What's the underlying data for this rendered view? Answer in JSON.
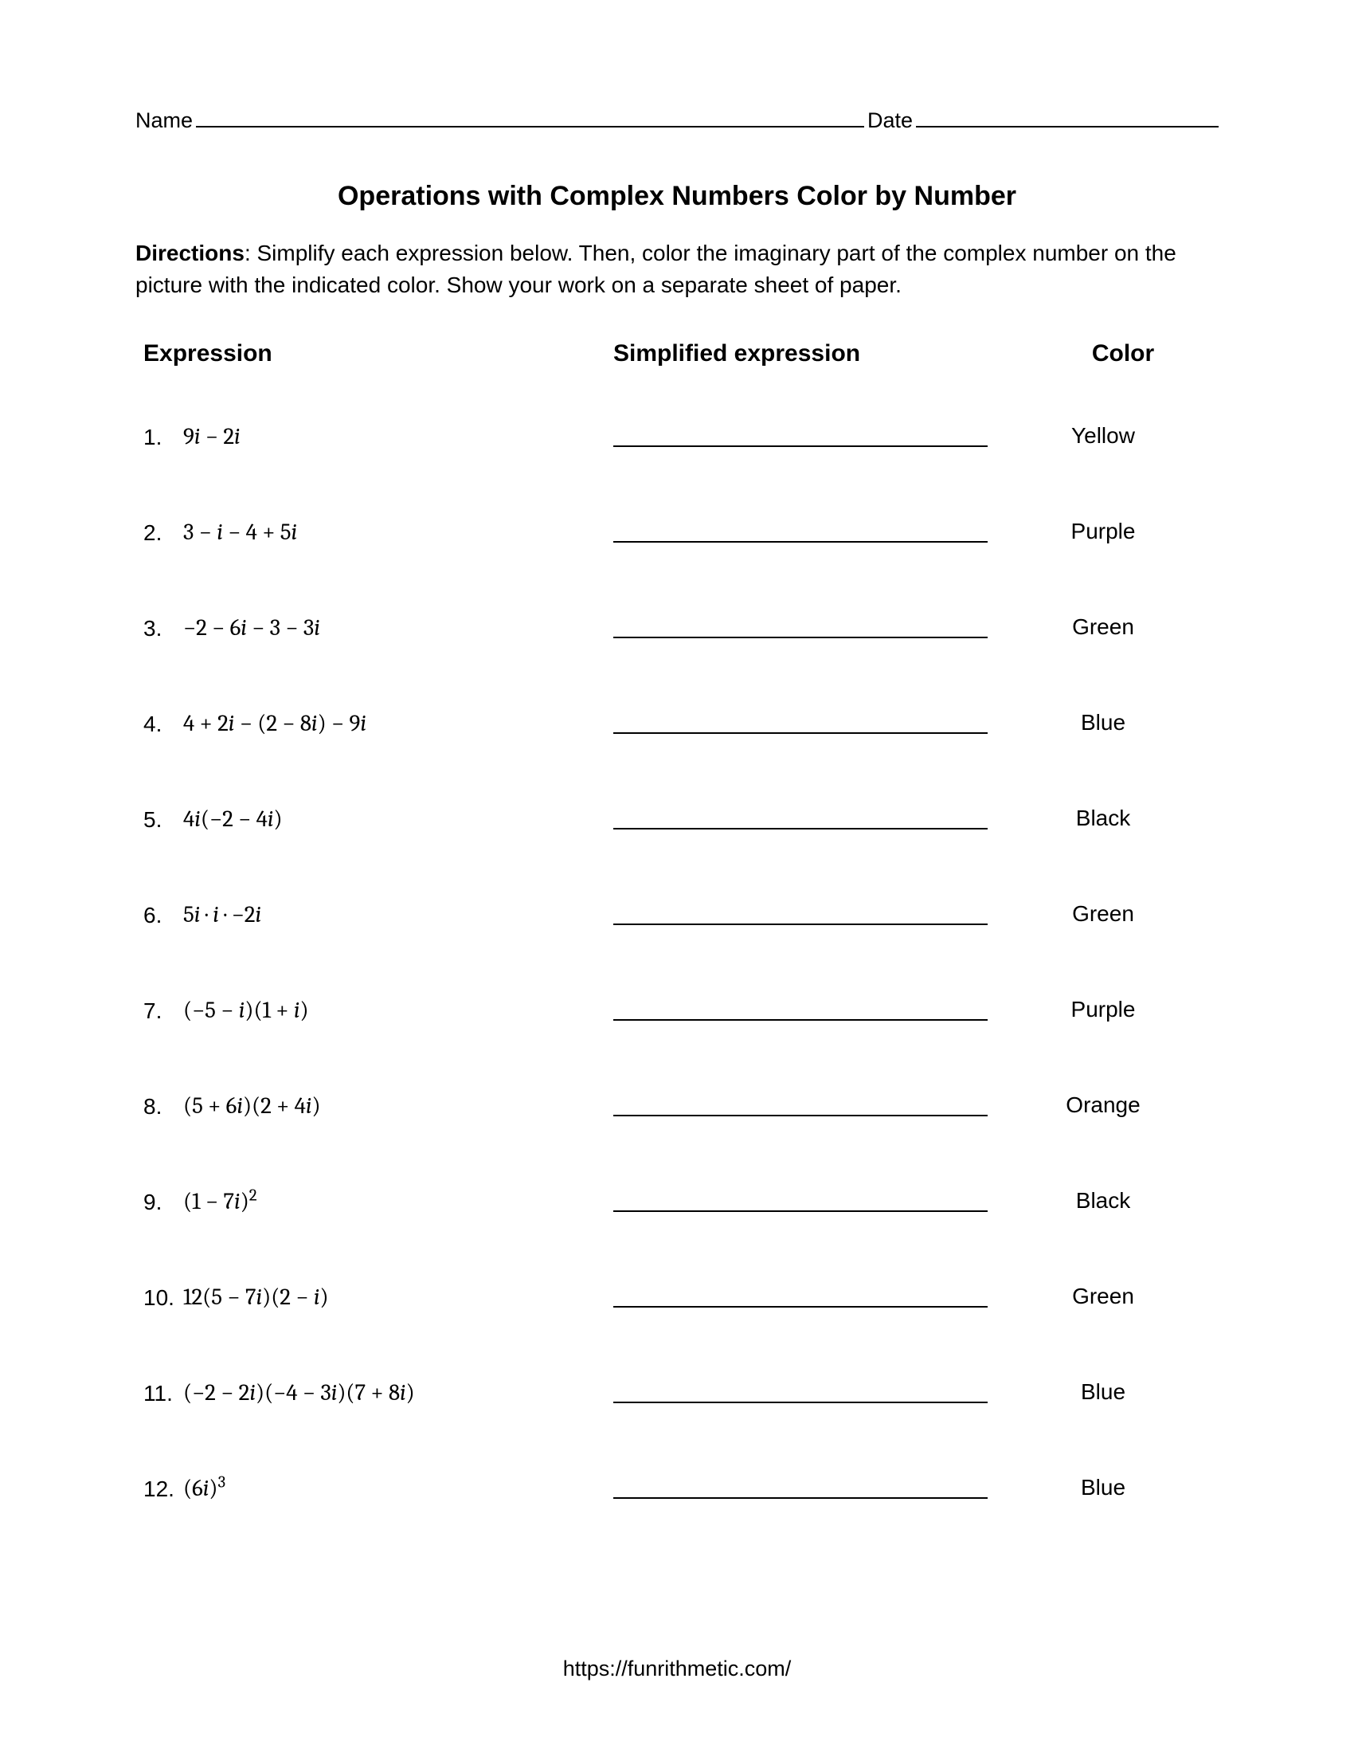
{
  "header": {
    "name_label": "Name",
    "date_label": "Date"
  },
  "title": "Operations with Complex Numbers Color by Number",
  "directions_label": "Directions",
  "directions_text": ": Simplify each expression below.  Then, color the imaginary part of the complex number on the picture with the indicated color. Show your work on a separate sheet of paper.",
  "columns": {
    "expression": "Expression",
    "simplified": "Simplified expression",
    "color": "Color"
  },
  "rows": [
    {
      "n": "1.",
      "expr_html": "9<span class='i'>i</span> − 2<span class='i'>i</span>",
      "color": "Yellow"
    },
    {
      "n": "2.",
      "expr_html": "3 − <span class='i'>i</span> − 4 + 5<span class='i'>i</span>",
      "color": "Purple"
    },
    {
      "n": "3.",
      "expr_html": "−2 − 6<span class='i'>i</span> − 3 − 3<span class='i'>i</span>",
      "color": "Green"
    },
    {
      "n": "4.",
      "expr_html": "4 + 2<span class='i'>i</span> − (2 − 8<span class='i'>i</span>) − 9<span class='i'>i</span>",
      "color": "Blue"
    },
    {
      "n": "5.",
      "expr_html": "4<span class='i'>i</span>(−2 − 4<span class='i'>i</span>)",
      "color": "Black"
    },
    {
      "n": "6.",
      "expr_html": "5<span class='i'>i</span> · <span class='i'>i</span> · −2<span class='i'>i</span>",
      "color": "Green"
    },
    {
      "n": "7.",
      "expr_html": "(−5 − <span class='i'>i</span>)(1 + <span class='i'>i</span>)",
      "color": "Purple"
    },
    {
      "n": "8.",
      "expr_html": "(5 + 6<span class='i'>i</span>)(2 + 4<span class='i'>i</span>)",
      "color": "Orange"
    },
    {
      "n": "9.",
      "expr_html": "(1 − 7<span class='i'>i</span>)<sup>2</sup>",
      "color": "Black"
    },
    {
      "n": "10.",
      "expr_html": "12(5 − 7<span class='i'>i</span>)(2 − <span class='i'>i</span>)",
      "color": "Green"
    },
    {
      "n": "11.",
      "expr_html": "(−2 − 2<span class='i'>i</span>)(−4 − 3<span class='i'>i</span>)(7 + 8<span class='i'>i</span>)",
      "color": "Blue"
    },
    {
      "n": "12.",
      "expr_html": "(6<span class='i'>i</span>)<sup>3</sup>",
      "color": "Blue"
    }
  ],
  "footer": "https://funrithmetic.com/"
}
